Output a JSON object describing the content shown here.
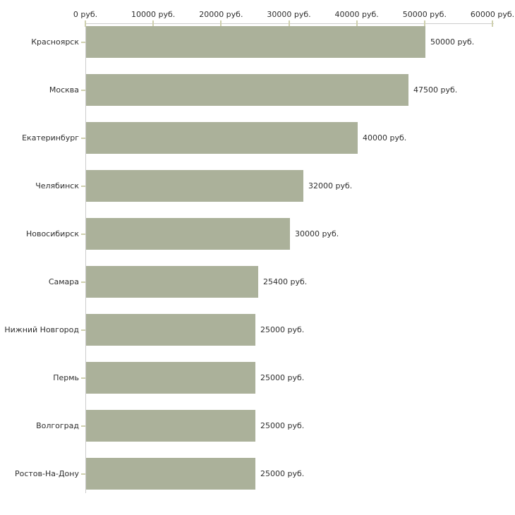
{
  "chart_data": {
    "type": "bar",
    "orientation": "horizontal",
    "title": "",
    "xlabel": "",
    "ylabel": "",
    "xlim": [
      0,
      60000
    ],
    "x_ticks": [
      0,
      10000,
      20000,
      30000,
      40000,
      50000,
      60000
    ],
    "x_tick_labels": [
      "0 руб.",
      "10000 руб.",
      "20000 руб.",
      "30000 руб.",
      "40000 руб.",
      "50000 руб.",
      "60000 руб."
    ],
    "categories": [
      "Красноярск",
      "Москва",
      "Екатеринбург",
      "Челябинск",
      "Новосибирск",
      "Самара",
      "Нижний Новгород",
      "Пермь",
      "Волгоград",
      "Ростов-На-Дону"
    ],
    "values": [
      50000,
      47500,
      40000,
      32000,
      30000,
      25400,
      25000,
      25000,
      25000,
      25000
    ],
    "value_labels": [
      "50000 руб.",
      "47500 руб.",
      "40000 руб.",
      "32000 руб.",
      "30000 руб.",
      "25400 руб.",
      "25000 руб.",
      "25000 руб.",
      "25000 руб.",
      "25000 руб."
    ],
    "grid": false,
    "legend": false,
    "colors": {
      "bar": "#abb19a",
      "axis": "#cccccc",
      "tick": "#cfd0ae",
      "text": "#2e2e2e",
      "background": "#ffffff"
    }
  }
}
